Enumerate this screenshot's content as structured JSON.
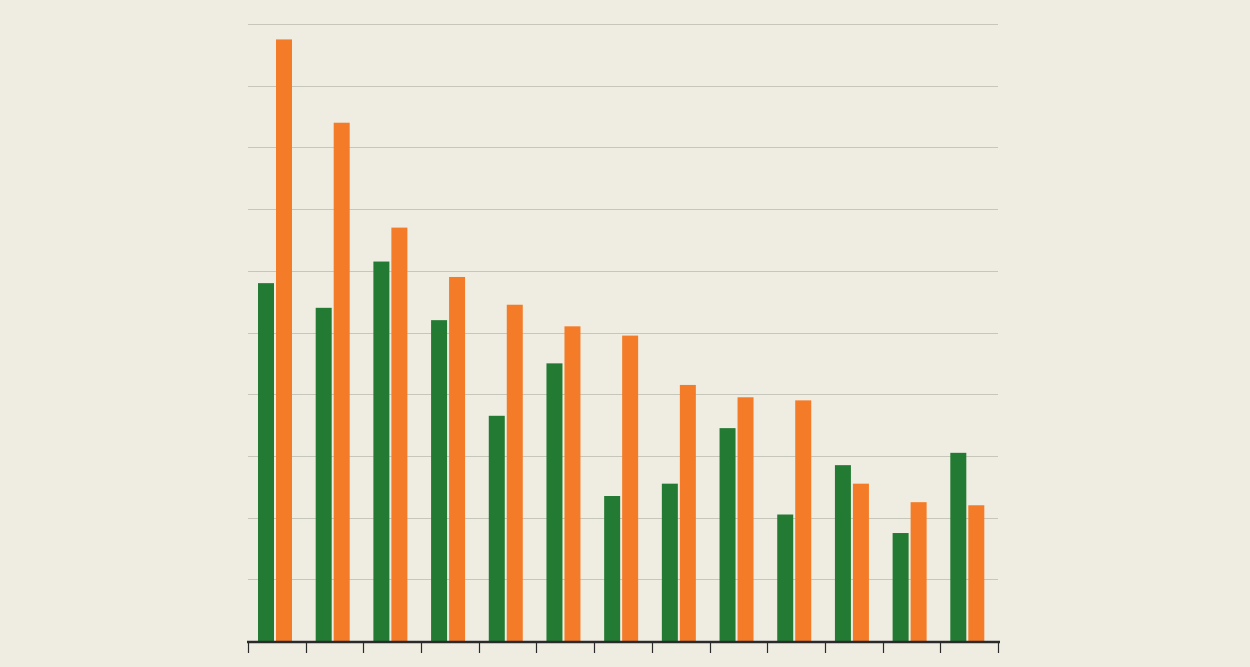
{
  "chart_data": {
    "type": "bar",
    "categories": [
      "",
      "",
      "",
      "",
      "",
      "",
      "",
      "",
      "",
      "",
      "",
      "",
      ""
    ],
    "series": [
      {
        "values": [
          5.8,
          5.4,
          6.15,
          5.2,
          3.65,
          4.5,
          2.35,
          2.55,
          3.45,
          2.05,
          2.85,
          1.75,
          3.05
        ]
      },
      {
        "values": [
          9.75,
          8.4,
          6.7,
          5.9,
          5.45,
          5.1,
          4.95,
          4.15,
          3.95,
          3.9,
          2.55,
          2.25,
          2.2
        ]
      }
    ],
    "ylim": [
      0,
      10
    ],
    "yticks": [
      0,
      1,
      2,
      3,
      4,
      5,
      6,
      7,
      8,
      9,
      10
    ],
    "grid": true,
    "legend": "none",
    "colors": {
      "background": "#efede2",
      "series": [
        "#237a33",
        "#f47b27"
      ],
      "grid": "#c7c6bb",
      "axis": "#2a2a2a"
    }
  }
}
